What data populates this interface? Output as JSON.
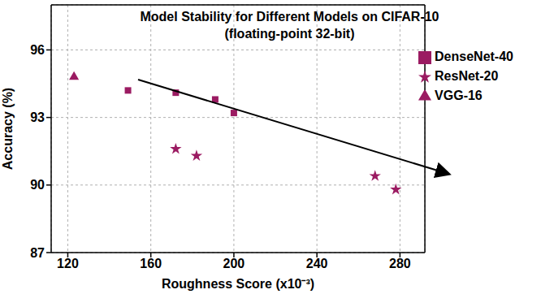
{
  "chart_data": {
    "type": "scatter",
    "title": "Model Stability for Different Models on CIFAR-10",
    "subtitle": "(floating-point 32-bit)",
    "x_label": "Roughness Score (x10⁻³)",
    "y_label": "Accuracy (%)",
    "xlim": [
      112,
      292
    ],
    "xticks": [
      120,
      160,
      200,
      240,
      280
    ],
    "ylim": [
      87,
      98
    ],
    "yticks": [
      87,
      90,
      93,
      96
    ],
    "grid": true,
    "legend": "upper right",
    "series": [
      {
        "name": "ResNet-20",
        "color": "#9b1b62",
        "marker": "star",
        "x": [
          172,
          182,
          268,
          278
        ],
        "values": [
          91.6,
          91.3,
          90.4,
          89.8
        ]
      },
      {
        "name": "DenseNet-40",
        "color": "#9b1b62",
        "marker": "square",
        "x": [
          149,
          172,
          191,
          200
        ],
        "values": [
          94.2,
          94.1,
          93.8,
          93.2
        ]
      },
      {
        "name": "VGG-16",
        "color": "#9b1b62",
        "marker": "triangle",
        "x": [
          123
        ],
        "values": [
          94.8
        ]
      }
    ]
  }
}
